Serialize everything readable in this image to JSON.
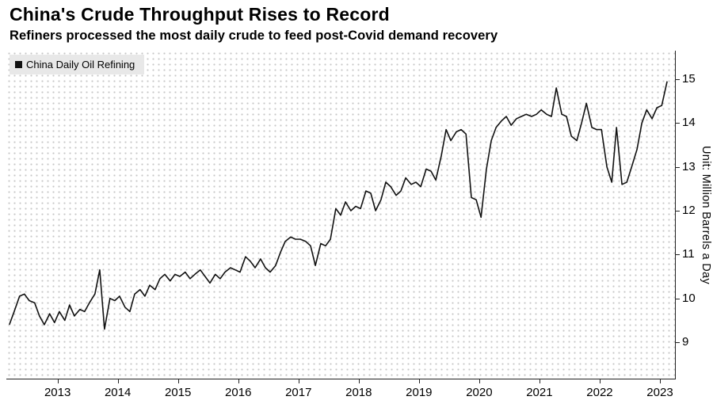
{
  "header": {
    "title": "China's Crude Throughput Rises to Record",
    "subtitle": "Refiners processed the most daily crude to feed post-Covid demand recovery"
  },
  "legend": {
    "label": "China Daily Oil Refining",
    "swatch_color": "#111111"
  },
  "axis": {
    "unit_label": "Unit: Million Barrels a Day"
  },
  "colors": {
    "line": "#111111",
    "axis": "#222222",
    "grid_dot": "#c6c6c6",
    "legend_bg": "#e8e8e8"
  },
  "chart_data": {
    "type": "line",
    "title": "China's Crude Throughput Rises to Record",
    "subtitle": "Refiners processed the most daily crude to feed post-Covid demand recovery",
    "xlabel": "",
    "ylabel": "Unit: Million Barrels a Day",
    "legend_position": "top-left",
    "grid": "dotted",
    "xlim": [
      2012.15,
      2023.25
    ],
    "ylim": [
      8.17,
      15.65
    ],
    "x_tick_years": [
      2013,
      2014,
      2015,
      2016,
      2017,
      2018,
      2019,
      2020,
      2021,
      2022,
      2023
    ],
    "y_tick_values": [
      9,
      10,
      11,
      12,
      13,
      14,
      15
    ],
    "series": [
      {
        "name": "China Daily Oil Refining",
        "x": [
          2012.2,
          2012.28,
          2012.37,
          2012.45,
          2012.53,
          2012.62,
          2012.7,
          2012.78,
          2012.87,
          2012.95,
          2013.03,
          2013.12,
          2013.2,
          2013.28,
          2013.37,
          2013.45,
          2013.53,
          2013.62,
          2013.7,
          2013.78,
          2013.87,
          2013.95,
          2014.03,
          2014.12,
          2014.2,
          2014.28,
          2014.37,
          2014.45,
          2014.53,
          2014.62,
          2014.7,
          2014.78,
          2014.87,
          2014.95,
          2015.03,
          2015.12,
          2015.2,
          2015.28,
          2015.37,
          2015.45,
          2015.53,
          2015.62,
          2015.7,
          2015.78,
          2015.87,
          2015.95,
          2016.03,
          2016.12,
          2016.2,
          2016.28,
          2016.37,
          2016.45,
          2016.53,
          2016.62,
          2016.7,
          2016.78,
          2016.87,
          2016.95,
          2017.03,
          2017.12,
          2017.2,
          2017.28,
          2017.37,
          2017.45,
          2017.53,
          2017.62,
          2017.7,
          2017.78,
          2017.87,
          2017.95,
          2018.03,
          2018.12,
          2018.2,
          2018.28,
          2018.37,
          2018.45,
          2018.53,
          2018.62,
          2018.7,
          2018.78,
          2018.87,
          2018.95,
          2019.03,
          2019.12,
          2019.2,
          2019.28,
          2019.37,
          2019.45,
          2019.53,
          2019.62,
          2019.7,
          2019.78,
          2019.87,
          2019.95,
          2020.03,
          2020.12,
          2020.2,
          2020.28,
          2020.37,
          2020.45,
          2020.53,
          2020.62,
          2020.7,
          2020.78,
          2020.87,
          2020.95,
          2021.03,
          2021.12,
          2021.2,
          2021.28,
          2021.37,
          2021.45,
          2021.53,
          2021.62,
          2021.7,
          2021.78,
          2021.87,
          2021.95,
          2022.03,
          2022.12,
          2022.2,
          2022.28,
          2022.37,
          2022.45,
          2022.53,
          2022.62,
          2022.7,
          2022.78,
          2022.87,
          2022.95,
          2023.03,
          2023.12
        ],
        "values": [
          9.4,
          9.7,
          10.05,
          10.1,
          9.95,
          9.9,
          9.6,
          9.4,
          9.65,
          9.45,
          9.7,
          9.5,
          9.85,
          9.6,
          9.75,
          9.7,
          9.9,
          10.1,
          10.65,
          9.3,
          10.0,
          9.95,
          10.05,
          9.8,
          9.7,
          10.1,
          10.2,
          10.05,
          10.3,
          10.2,
          10.45,
          10.55,
          10.4,
          10.55,
          10.5,
          10.6,
          10.45,
          10.55,
          10.65,
          10.5,
          10.35,
          10.55,
          10.45,
          10.6,
          10.7,
          10.65,
          10.6,
          10.95,
          10.85,
          10.7,
          10.9,
          10.7,
          10.6,
          10.75,
          11.05,
          11.3,
          11.4,
          11.35,
          11.35,
          11.3,
          11.2,
          10.75,
          11.25,
          11.2,
          11.35,
          12.05,
          11.9,
          12.2,
          12.0,
          12.1,
          12.05,
          12.45,
          12.4,
          12.0,
          12.25,
          12.65,
          12.55,
          12.35,
          12.45,
          12.75,
          12.6,
          12.65,
          12.55,
          12.95,
          12.9,
          12.7,
          13.25,
          13.85,
          13.6,
          13.8,
          13.85,
          13.75,
          12.3,
          12.25,
          11.85,
          12.95,
          13.6,
          13.9,
          14.05,
          14.15,
          13.95,
          14.1,
          14.15,
          14.2,
          14.15,
          14.2,
          14.3,
          14.2,
          14.15,
          14.8,
          14.2,
          14.15,
          13.7,
          13.6,
          14.0,
          14.45,
          13.9,
          13.85,
          13.85,
          13.0,
          12.65,
          13.9,
          12.6,
          12.65,
          13.0,
          13.4,
          14.0,
          14.3,
          14.1,
          14.35,
          14.4,
          14.95
        ]
      }
    ]
  }
}
